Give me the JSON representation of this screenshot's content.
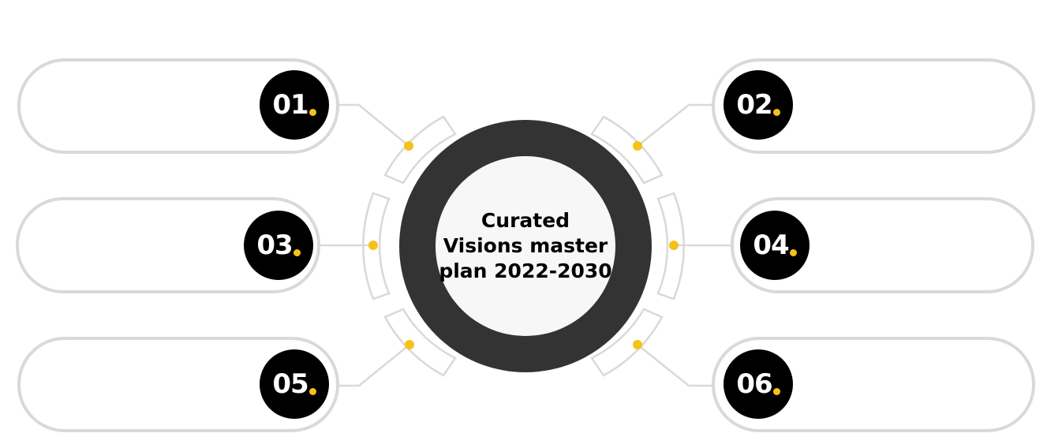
{
  "center": {
    "title_lines": [
      "Curated",
      "Visions master",
      "plan 2022-2030"
    ]
  },
  "items": [
    {
      "number": "01"
    },
    {
      "number": "02"
    },
    {
      "number": "03"
    },
    {
      "number": "04"
    },
    {
      "number": "05"
    },
    {
      "number": "06"
    }
  ],
  "colors": {
    "accent": "#f5c21a",
    "badge": "#000000",
    "ring": "#333333",
    "inner": "#f7f7f7",
    "outline": "#d9d9d9"
  },
  "icons": {
    "badge_dot": "accent-dot-icon",
    "node": "connector-node-icon"
  }
}
